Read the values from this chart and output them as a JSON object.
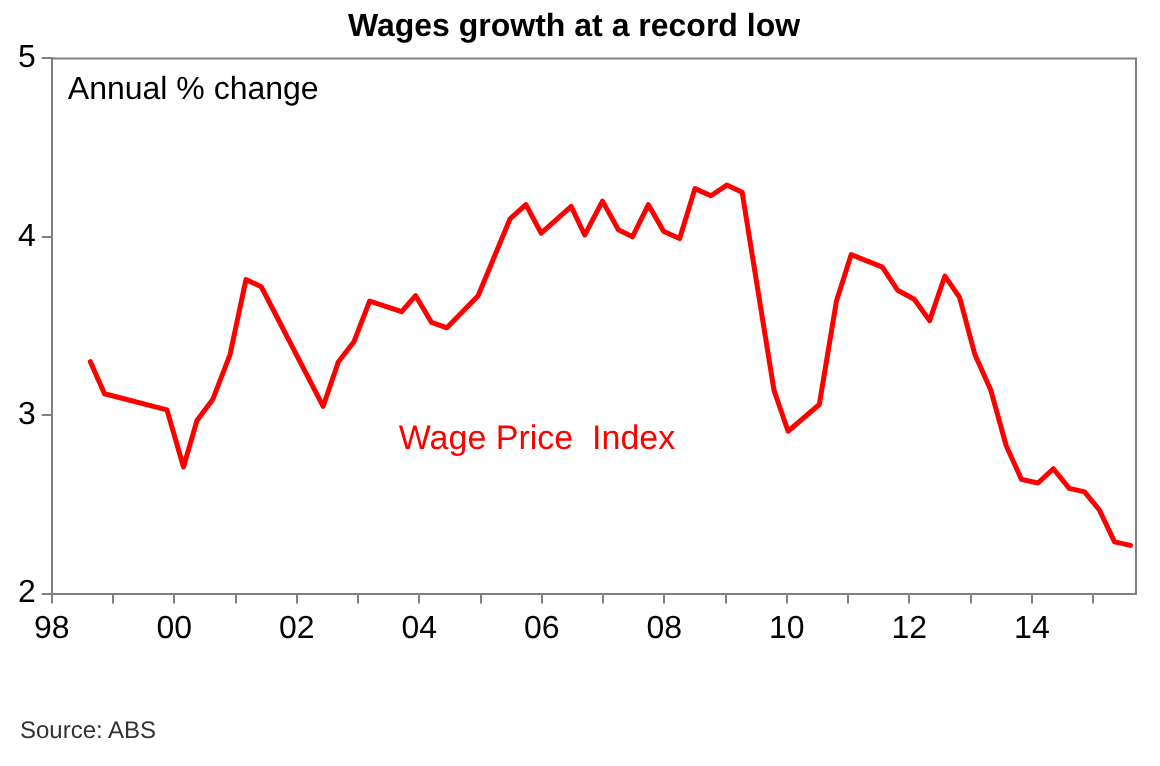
{
  "chart_data": {
    "type": "line",
    "title": "Wages growth at a record low",
    "ylabel": "Annual % change",
    "annotations": [
      "Source: ABS"
    ],
    "x": [
      1998.63,
      1998.86,
      1999.88,
      2000.15,
      2000.37,
      2000.63,
      2000.91,
      2001.17,
      2001.42,
      2002.43,
      2002.68,
      2002.93,
      2003.19,
      2003.71,
      2003.94,
      2004.2,
      2004.45,
      2004.96,
      2005.48,
      2005.74,
      2005.99,
      2006.48,
      2006.7,
      2006.99,
      2007.25,
      2007.48,
      2007.74,
      2007.99,
      2008.25,
      2008.5,
      2008.76,
      2009.02,
      2009.27,
      2009.79,
      2010.02,
      2010.53,
      2010.81,
      2011.05,
      2011.56,
      2011.81,
      2012.08,
      2012.33,
      2012.58,
      2012.82,
      2013.07,
      2013.33,
      2013.58,
      2013.83,
      2014.1,
      2014.35,
      2014.61,
      2014.86,
      2015.1,
      2015.35,
      2015.61
    ],
    "series": [
      {
        "name": "Wage Price  Index",
        "color": "#ff0000",
        "values": [
          3.3,
          3.12,
          3.03,
          2.71,
          2.97,
          3.09,
          3.34,
          3.76,
          3.72,
          3.05,
          3.3,
          3.41,
          3.64,
          3.58,
          3.67,
          3.52,
          3.49,
          3.67,
          4.1,
          4.18,
          4.02,
          4.17,
          4.01,
          4.2,
          4.04,
          4.0,
          4.18,
          4.03,
          3.99,
          4.27,
          4.23,
          4.29,
          4.25,
          3.14,
          2.91,
          3.06,
          3.64,
          3.9,
          3.83,
          3.7,
          3.65,
          3.53,
          3.78,
          3.66,
          3.34,
          3.14,
          2.83,
          2.64,
          2.62,
          2.7,
          2.59,
          2.57,
          2.47,
          2.29,
          2.27
        ]
      }
    ],
    "xlim": [
      1998,
      2015.7
    ],
    "xticks": [
      {
        "value": 1998,
        "label": "98"
      },
      {
        "value": 1999,
        "label": null
      },
      {
        "value": 2000,
        "label": "00"
      },
      {
        "value": 2001,
        "label": null
      },
      {
        "value": 2002,
        "label": "02"
      },
      {
        "value": 2003,
        "label": null
      },
      {
        "value": 2004,
        "label": "04"
      },
      {
        "value": 2005,
        "label": null
      },
      {
        "value": 2006,
        "label": "06"
      },
      {
        "value": 2007,
        "label": null
      },
      {
        "value": 2008,
        "label": "08"
      },
      {
        "value": 2009,
        "label": null
      },
      {
        "value": 2010,
        "label": "10"
      },
      {
        "value": 2011,
        "label": null
      },
      {
        "value": 2012,
        "label": "12"
      },
      {
        "value": 2013,
        "label": null
      },
      {
        "value": 2014,
        "label": "14"
      },
      {
        "value": 2015,
        "label": null
      }
    ],
    "ylim": [
      2,
      5
    ],
    "yticks": [
      2,
      3,
      4,
      5
    ],
    "grid": false,
    "legend": false,
    "marker": "none",
    "line_style": "solid"
  }
}
